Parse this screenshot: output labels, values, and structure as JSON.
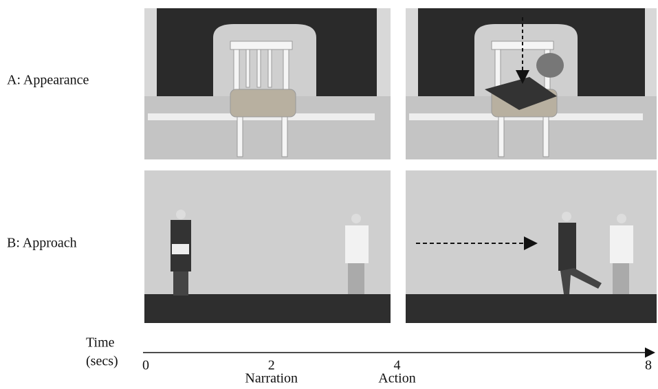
{
  "rows": [
    {
      "label": "A: Appearance"
    },
    {
      "label": "B: Approach"
    }
  ],
  "timeline": {
    "axis_label": [
      "Time",
      "(secs)"
    ],
    "xlim": [
      0,
      8
    ],
    "ticks": [
      0,
      2,
      4,
      8
    ],
    "captions": [
      null,
      "Narration",
      "Action",
      null
    ]
  }
}
